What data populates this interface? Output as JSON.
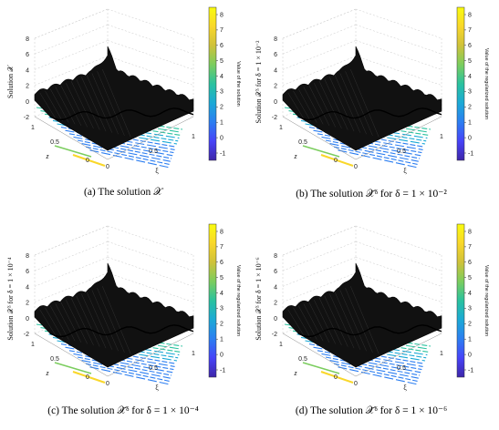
{
  "chart_data": [
    {
      "type": "surface3d",
      "caption_prefix": "(a)",
      "caption_text": "The solution 𝒳",
      "zlabel": "Solution 𝒳",
      "xlabel": "ξ",
      "ylabel": "z",
      "zticks": [
        "8",
        "6",
        "4",
        "2",
        "0",
        "-2"
      ],
      "xticks": [
        "0",
        "0.5",
        "1"
      ],
      "yticks": [
        "1",
        "0.5",
        "0"
      ],
      "colorbar_label": "Value of the solution",
      "colorbar_ticks": [
        "8",
        "7",
        "6",
        "5",
        "4",
        "3",
        "2",
        "1",
        "0",
        "-1"
      ],
      "zlim": [
        -2,
        8
      ]
    },
    {
      "type": "surface3d",
      "caption_prefix": "(b)",
      "caption_text": "The solution 𝒳̃ᵟ for δ = 1 × 10⁻²",
      "zlabel": "Solution 𝒳ᵟ for δ = 1 × 10⁻²",
      "xlabel": "ξ",
      "ylabel": "z",
      "zticks": [
        "8",
        "6",
        "4",
        "2",
        "0",
        "-2"
      ],
      "xticks": [
        "0",
        "0.5",
        "1"
      ],
      "yticks": [
        "1",
        "0.5",
        "0"
      ],
      "colorbar_label": "Value of the regularized solution",
      "colorbar_ticks": [
        "8",
        "7",
        "6",
        "5",
        "4",
        "3",
        "2",
        "1",
        "0",
        "-1"
      ],
      "zlim": [
        -2,
        8
      ]
    },
    {
      "type": "surface3d",
      "caption_prefix": "(c)",
      "caption_text": "The solution 𝒳̃ᵟ for δ = 1 × 10⁻⁴",
      "zlabel": "Solution 𝒳ᵟ for δ = 1 × 10⁻⁴",
      "xlabel": "ξ",
      "ylabel": "z",
      "zticks": [
        "8",
        "6",
        "4",
        "2",
        "0",
        "-2"
      ],
      "xticks": [
        "0",
        "0.5",
        "1"
      ],
      "yticks": [
        "1",
        "0.5",
        "0"
      ],
      "colorbar_label": "Value of the regularized solution",
      "colorbar_ticks": [
        "8",
        "7",
        "6",
        "5",
        "4",
        "3",
        "2",
        "1",
        "0",
        "-1"
      ],
      "zlim": [
        -2,
        8
      ]
    },
    {
      "type": "surface3d",
      "caption_prefix": "(d)",
      "caption_text": "The solution 𝒳̃ᵟ for δ = 1 × 10⁻⁶",
      "zlabel": "Solution 𝒳ᵟ for δ = 1 × 10⁻⁶",
      "xlabel": "ξ",
      "ylabel": "z",
      "zticks": [
        "8",
        "6",
        "4",
        "2",
        "0",
        "-2"
      ],
      "xticks": [
        "0",
        "0.5",
        "1"
      ],
      "yticks": [
        "1",
        "0.5",
        "0"
      ],
      "colorbar_label": "Value of the regularized solution",
      "colorbar_ticks": [
        "8",
        "7",
        "6",
        "5",
        "4",
        "3",
        "2",
        "1",
        "0",
        "-1"
      ],
      "zlim": [
        -2,
        8
      ]
    }
  ],
  "colormap": [
    "#3e26a8",
    "#4743f8",
    "#2c7ef1",
    "#1ba9d6",
    "#2ac29f",
    "#7bcd5e",
    "#cfc23a",
    "#f9d72a",
    "#f9fb0e"
  ]
}
